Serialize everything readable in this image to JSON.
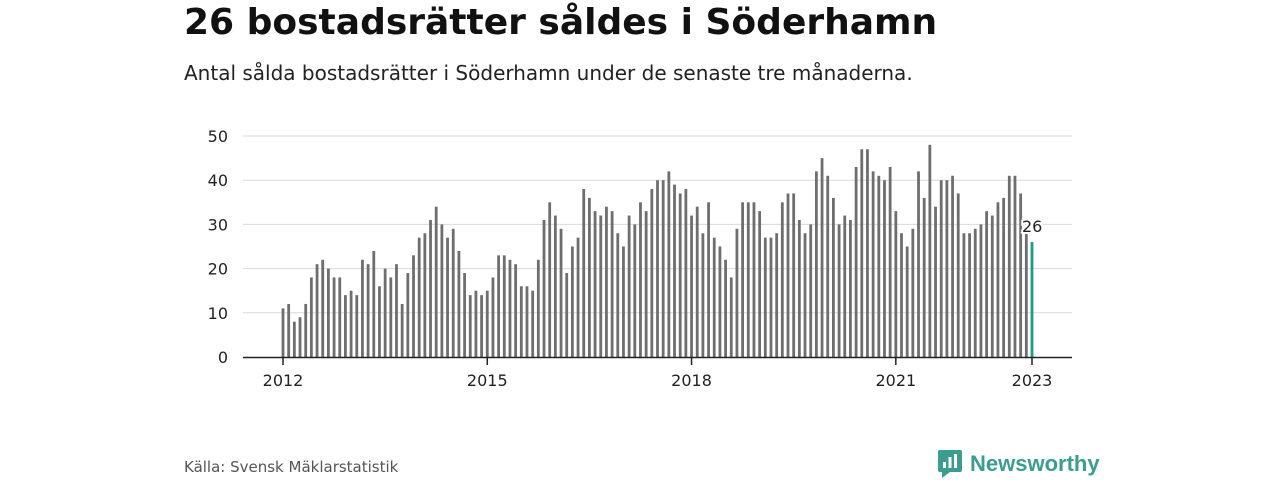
{
  "header": {
    "title": "26 bostadsrätter såldes i Söderhamn",
    "subtitle": "Antal sålda bostadsrätter i Söderhamn under de senaste tre månaderna."
  },
  "footer": {
    "source": "Källa: Svensk Mäklarstatistik",
    "brand": "Newsworthy"
  },
  "colors": {
    "bar": "#6e6e6e",
    "highlight": "#1a9e8a",
    "grid": "#d9d9d9",
    "brand": "#3a9d8f"
  },
  "icons": {
    "brand": "bar-chart-speech-bubble-icon"
  },
  "chart_data": {
    "type": "bar",
    "x_start": "2012-01",
    "x_end": "2023-01",
    "interval": "month",
    "ylim": [
      0,
      50
    ],
    "yticks": [
      0,
      10,
      20,
      30,
      40,
      50
    ],
    "xticks": [
      "2012",
      "2015",
      "2018",
      "2021",
      "2023"
    ],
    "grid": true,
    "highlight_last": true,
    "annotation": {
      "label": "26",
      "value": 26
    },
    "values": [
      11,
      12,
      8,
      9,
      12,
      18,
      21,
      22,
      20,
      18,
      18,
      14,
      15,
      14,
      22,
      21,
      24,
      16,
      20,
      18,
      21,
      12,
      19,
      23,
      27,
      28,
      31,
      34,
      30,
      27,
      29,
      24,
      19,
      14,
      15,
      14,
      15,
      18,
      23,
      23,
      22,
      21,
      16,
      16,
      15,
      22,
      31,
      35,
      32,
      29,
      19,
      25,
      27,
      38,
      36,
      33,
      32,
      34,
      33,
      28,
      25,
      32,
      30,
      35,
      33,
      38,
      40,
      40,
      42,
      39,
      37,
      38,
      32,
      34,
      28,
      35,
      27,
      25,
      22,
      18,
      29,
      35,
      35,
      35,
      33,
      27,
      27,
      28,
      35,
      37,
      37,
      31,
      28,
      30,
      42,
      45,
      41,
      36,
      30,
      32,
      31,
      43,
      47,
      47,
      42,
      41,
      40,
      43,
      33,
      28,
      25,
      29,
      42,
      36,
      48,
      34,
      40,
      40,
      41,
      37,
      28,
      28,
      29,
      30,
      33,
      32,
      35,
      36,
      41,
      41,
      37,
      28,
      26
    ]
  }
}
